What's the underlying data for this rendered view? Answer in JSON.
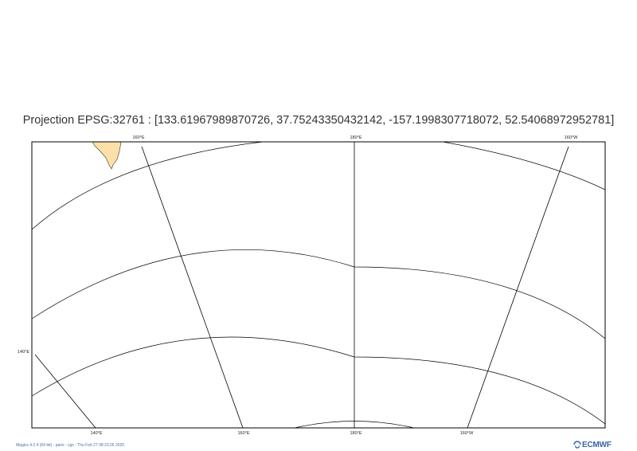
{
  "title": "Projection EPSG:32761 : [133.61967989870726, 37.75243350432142, -157.1998307718072, 52.54068972952781]",
  "map": {
    "projection": "EPSG:32761",
    "land_color": "#fde0a8",
    "line_color": "#000000",
    "top_labels": [
      "160°E",
      "180°E",
      "160°W"
    ],
    "bottom_labels": [
      "140°E",
      "160°E",
      "180°E",
      "160°W"
    ],
    "left_labels": [
      "140°E"
    ]
  },
  "footer": {
    "credit": "Magics 4.2.4 (64 bit) - paris - cgx - Thu Feb 27 08:23:26 2020",
    "logo_text": "ECMWF",
    "logo_icon": "ecmwf-logo-icon"
  }
}
